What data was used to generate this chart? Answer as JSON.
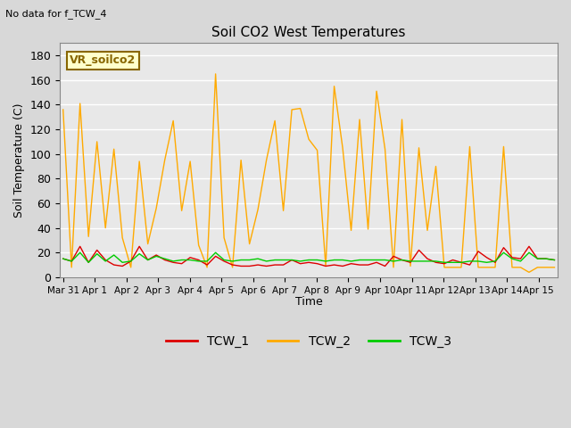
{
  "title": "Soil CO2 West Temperatures",
  "subtitle": "No data for f_TCW_4",
  "ylabel": "Soil Temperature (C)",
  "xlabel": "Time",
  "annotation": "VR_soilco2",
  "ylim": [
    0,
    190
  ],
  "yticks": [
    0,
    20,
    40,
    60,
    80,
    100,
    120,
    140,
    160,
    180
  ],
  "xtick_labels": [
    "Mar 31",
    "Apr 1",
    "Apr 2",
    "Apr 3",
    "Apr 4",
    "Apr 5",
    "Apr 6",
    "Apr 7",
    "Apr 8",
    "Apr 9",
    "Apr 10",
    "Apr 11",
    "Apr 12",
    "Apr 13",
    "Apr 14",
    "Apr 15"
  ],
  "colors": {
    "TCW_1": "#dd0000",
    "TCW_2": "#ffaa00",
    "TCW_3": "#00cc00",
    "background": "#e8e8e8",
    "grid": "#ffffff",
    "annotation_bg": "#ffffcc",
    "annotation_border": "#886600"
  },
  "TCW_1": [
    15,
    13,
    25,
    12,
    22,
    14,
    10,
    9,
    13,
    25,
    14,
    18,
    14,
    12,
    11,
    16,
    14,
    10,
    17,
    13,
    10,
    9,
    9,
    10,
    9,
    10,
    10,
    14,
    11,
    12,
    11,
    9,
    10,
    9,
    11,
    10,
    10,
    12,
    9,
    17,
    14,
    12,
    22,
    15,
    12,
    11,
    14,
    12,
    10,
    21,
    16,
    12,
    24,
    16,
    15,
    25,
    15,
    15,
    14
  ],
  "TCW_2": [
    136,
    8,
    141,
    33,
    110,
    40,
    104,
    32,
    8,
    94,
    27,
    56,
    95,
    127,
    54,
    94,
    26,
    8,
    165,
    32,
    8,
    95,
    27,
    55,
    95,
    127,
    54,
    136,
    137,
    112,
    103,
    9,
    155,
    105,
    38,
    128,
    39,
    151,
    104,
    8,
    128,
    9,
    105,
    38,
    90,
    8,
    8,
    8,
    106,
    8,
    8,
    8,
    106,
    8,
    8,
    4,
    8,
    8,
    8
  ],
  "TCW_3": [
    15,
    13,
    20,
    12,
    19,
    13,
    18,
    12,
    13,
    19,
    14,
    17,
    15,
    13,
    14,
    14,
    13,
    13,
    20,
    14,
    13,
    14,
    14,
    15,
    13,
    14,
    14,
    14,
    13,
    14,
    14,
    13,
    14,
    14,
    13,
    14,
    14,
    14,
    14,
    13,
    14,
    13,
    13,
    13,
    13,
    12,
    12,
    12,
    13,
    13,
    12,
    13,
    20,
    15,
    13,
    20,
    15,
    15,
    14
  ],
  "n_points": 59,
  "xlim_start": -0.1,
  "xlim_end": 15.6
}
